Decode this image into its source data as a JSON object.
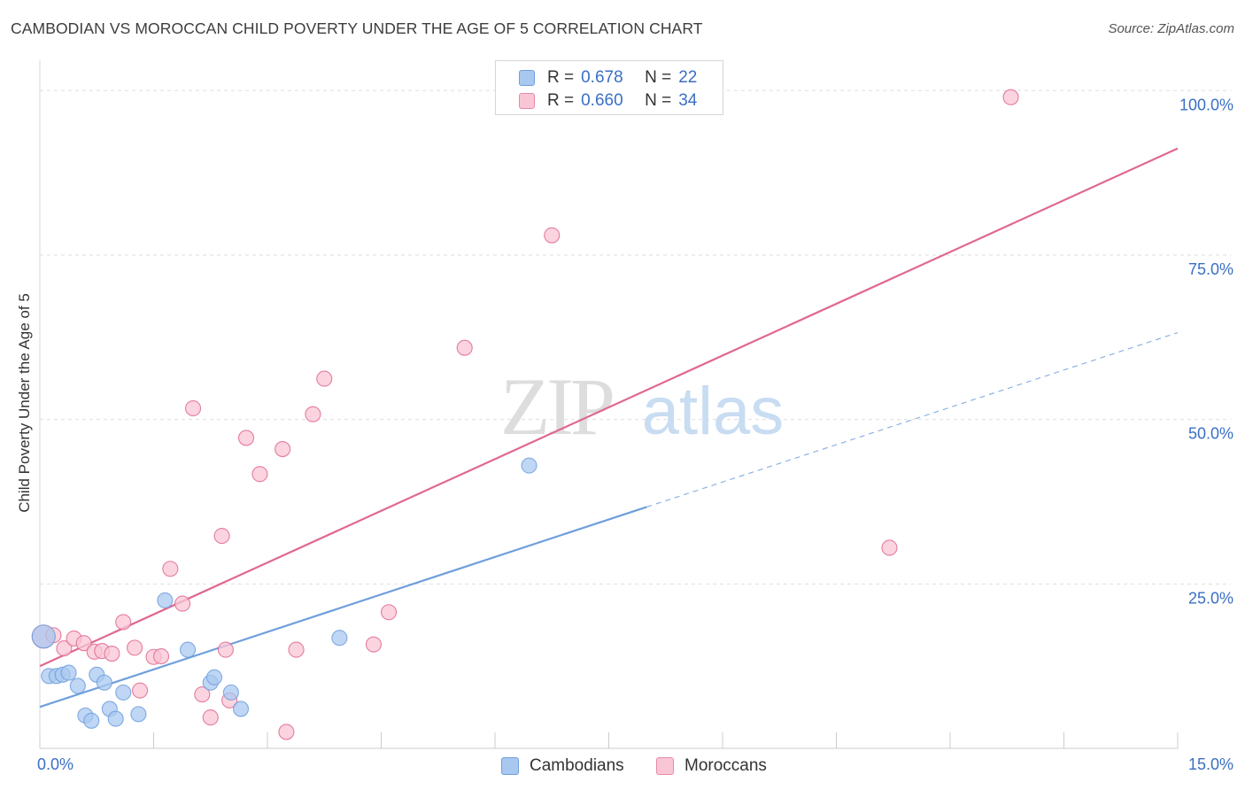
{
  "title": "CAMBODIAN VS MOROCCAN CHILD POVERTY UNDER THE AGE OF 5 CORRELATION CHART",
  "source": "Source: ZipAtlas.com",
  "watermark": {
    "zip": "ZIP",
    "atlas": "atlas"
  },
  "legend_stats": [
    {
      "r_label": "R =",
      "r_value": "0.678",
      "n_label": "N =",
      "n_value": "22",
      "color": "#a9c8f0",
      "border": "#6f9fdc"
    },
    {
      "r_label": "R =",
      "r_value": "0.660",
      "n_label": "N =",
      "n_value": "34",
      "color": "#f9c6d5",
      "border": "#e88aa6"
    }
  ],
  "bottom_legend": [
    {
      "label": "Cambodians",
      "color": "#a9c8f0",
      "border": "#6f9fdc"
    },
    {
      "label": "Moroccans",
      "color": "#f9c6d5",
      "border": "#e88aa6"
    }
  ],
  "chart_data": {
    "type": "scatter",
    "title": "CAMBODIAN VS MOROCCAN CHILD POVERTY UNDER THE AGE OF 5 CORRELATION CHART",
    "xlabel": "",
    "ylabel": "Child Poverty Under the Age of 5",
    "xlim": [
      0,
      15
    ],
    "ylim": [
      0,
      103
    ],
    "x_tick_labels": [
      "0.0%",
      "15.0%"
    ],
    "y_ticks": [
      25,
      50,
      75,
      100
    ],
    "y_tick_labels": [
      "25.0%",
      "50.0%",
      "75.0%",
      "100.0%"
    ],
    "grid": true,
    "series": [
      {
        "name": "Cambodians",
        "color": "#6f9fdc",
        "fill": "#a9c8f0",
        "points": [
          [
            0.05,
            17.0
          ],
          [
            0.12,
            11.0
          ],
          [
            0.22,
            11.0
          ],
          [
            0.3,
            11.2
          ],
          [
            0.38,
            11.5
          ],
          [
            0.5,
            9.5
          ],
          [
            0.6,
            5.0
          ],
          [
            0.68,
            4.2
          ],
          [
            0.75,
            11.2
          ],
          [
            0.85,
            10.0
          ],
          [
            0.92,
            6.0
          ],
          [
            1.0,
            4.5
          ],
          [
            1.1,
            8.5
          ],
          [
            1.3,
            5.2
          ],
          [
            1.65,
            22.5
          ],
          [
            1.95,
            15.0
          ],
          [
            2.25,
            10.0
          ],
          [
            2.3,
            10.8
          ],
          [
            2.52,
            8.5
          ],
          [
            2.65,
            6.0
          ],
          [
            3.95,
            16.8
          ],
          [
            6.45,
            43.0
          ]
        ],
        "trend": {
          "x0": 0,
          "y0": 6.3,
          "x1": 8.0,
          "y1": 36.7,
          "dashed_to_x": 15,
          "dashed_to_y": 63.2
        }
      },
      {
        "name": "Moroccans",
        "color": "#e0688f",
        "fill": "#f9c6d5",
        "points": [
          [
            0.05,
            17.0
          ],
          [
            0.18,
            17.2
          ],
          [
            0.32,
            15.2
          ],
          [
            0.45,
            16.7
          ],
          [
            0.58,
            16.0
          ],
          [
            0.72,
            14.7
          ],
          [
            0.82,
            14.8
          ],
          [
            0.95,
            14.4
          ],
          [
            1.1,
            19.2
          ],
          [
            1.25,
            15.3
          ],
          [
            1.32,
            8.8
          ],
          [
            1.5,
            13.9
          ],
          [
            1.6,
            14.0
          ],
          [
            1.72,
            27.3
          ],
          [
            1.88,
            22.0
          ],
          [
            2.02,
            51.7
          ],
          [
            2.14,
            8.2
          ],
          [
            2.25,
            4.7
          ],
          [
            2.4,
            32.3
          ],
          [
            2.45,
            15.0
          ],
          [
            2.5,
            7.3
          ],
          [
            2.72,
            47.2
          ],
          [
            2.9,
            41.7
          ],
          [
            3.2,
            45.5
          ],
          [
            3.25,
            2.5
          ],
          [
            3.38,
            15.0
          ],
          [
            3.6,
            50.8
          ],
          [
            3.75,
            56.2
          ],
          [
            4.4,
            15.8
          ],
          [
            4.6,
            20.7
          ],
          [
            5.6,
            60.9
          ],
          [
            6.75,
            78.0
          ],
          [
            11.2,
            30.5
          ],
          [
            12.8,
            99.0
          ]
        ],
        "trend": {
          "x0": 0,
          "y0": 12.5,
          "x1": 15,
          "y1": 91.2
        }
      }
    ]
  }
}
